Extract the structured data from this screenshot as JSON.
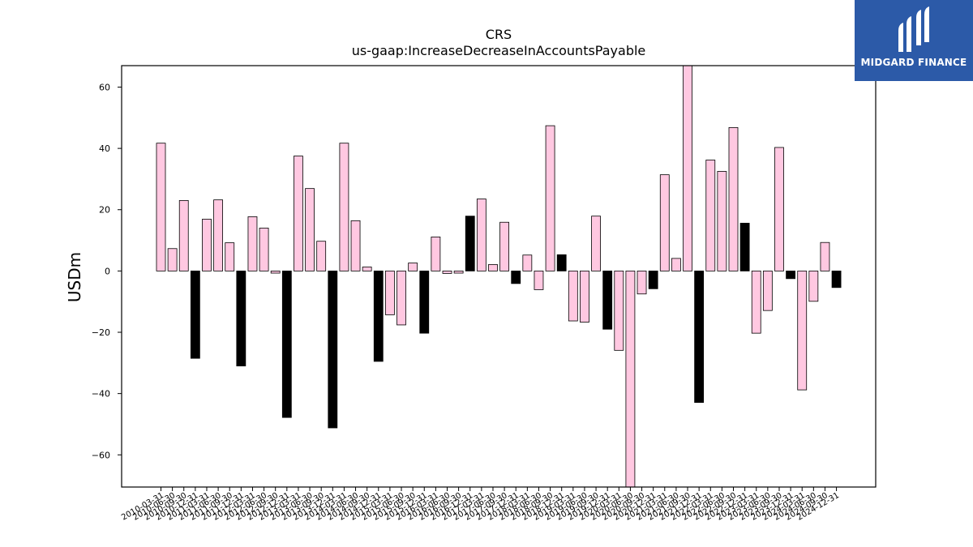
{
  "brand": {
    "name": "MIDGARD FINANCE",
    "bg_color": "#2c5aa8"
  },
  "chart_data": {
    "type": "bar",
    "title": "CRS",
    "subtitle": "us-gaap:IncreaseDecreaseInAccountsPayable",
    "ylabel": "USDm",
    "xlabel": "",
    "ylim": [
      -70.5,
      67
    ],
    "yticks": [
      -60,
      -40,
      -20,
      0,
      20,
      40,
      60
    ],
    "grid": false,
    "colors": {
      "default": "#ffc8e1",
      "q4": "#000000",
      "edge": "#000000"
    },
    "categories": [
      "2010-03-31",
      "2010-06-30",
      "2010-09-30",
      "2010-12-31",
      "2011-03-31",
      "2011-06-30",
      "2011-09-30",
      "2011-12-31",
      "2012-03-31",
      "2012-06-30",
      "2012-09-30",
      "2012-12-31",
      "2013-03-31",
      "2013-06-30",
      "2013-09-30",
      "2013-12-31",
      "2014-03-31",
      "2014-06-30",
      "2014-09-30",
      "2014-12-31",
      "2015-03-31",
      "2015-06-30",
      "2015-09-30",
      "2015-12-31",
      "2016-03-31",
      "2016-06-30",
      "2016-09-30",
      "2016-12-31",
      "2017-03-31",
      "2017-06-30",
      "2017-09-30",
      "2017-12-31",
      "2018-03-31",
      "2018-06-30",
      "2018-09-30",
      "2018-12-31",
      "2019-03-31",
      "2019-06-30",
      "2019-09-30",
      "2019-12-31",
      "2020-03-31",
      "2020-06-30",
      "2020-09-30",
      "2020-12-31",
      "2021-03-31",
      "2021-06-30",
      "2021-09-30",
      "2021-12-31",
      "2022-03-31",
      "2022-06-30",
      "2022-09-30",
      "2022-12-31",
      "2023-03-31",
      "2023-06-30",
      "2023-09-30",
      "2023-12-31",
      "2024-03-31",
      "2024-06-30",
      "2024-09-30",
      "2024-12-31"
    ],
    "values": [
      41.7,
      7.3,
      23.0,
      -28.5,
      16.9,
      23.2,
      9.2,
      -31.0,
      17.7,
      14.0,
      -0.7,
      -47.8,
      37.5,
      26.9,
      9.7,
      -51.2,
      41.7,
      16.4,
      1.3,
      -29.5,
      -14.3,
      -17.6,
      2.6,
      -20.3,
      11.1,
      -0.8,
      -0.7,
      17.9,
      23.5,
      2.1,
      15.9,
      -4.1,
      5.2,
      -6.1,
      47.4,
      5.3,
      -16.3,
      -16.7,
      17.9,
      -19.0,
      -25.9,
      -70.5,
      -7.5,
      -5.8,
      31.4,
      4.1,
      67.0,
      -42.9,
      36.2,
      32.5,
      46.8,
      15.6,
      -20.3,
      -12.9,
      40.3,
      -2.5,
      -38.8,
      -9.9,
      9.3,
      -5.4
    ]
  }
}
